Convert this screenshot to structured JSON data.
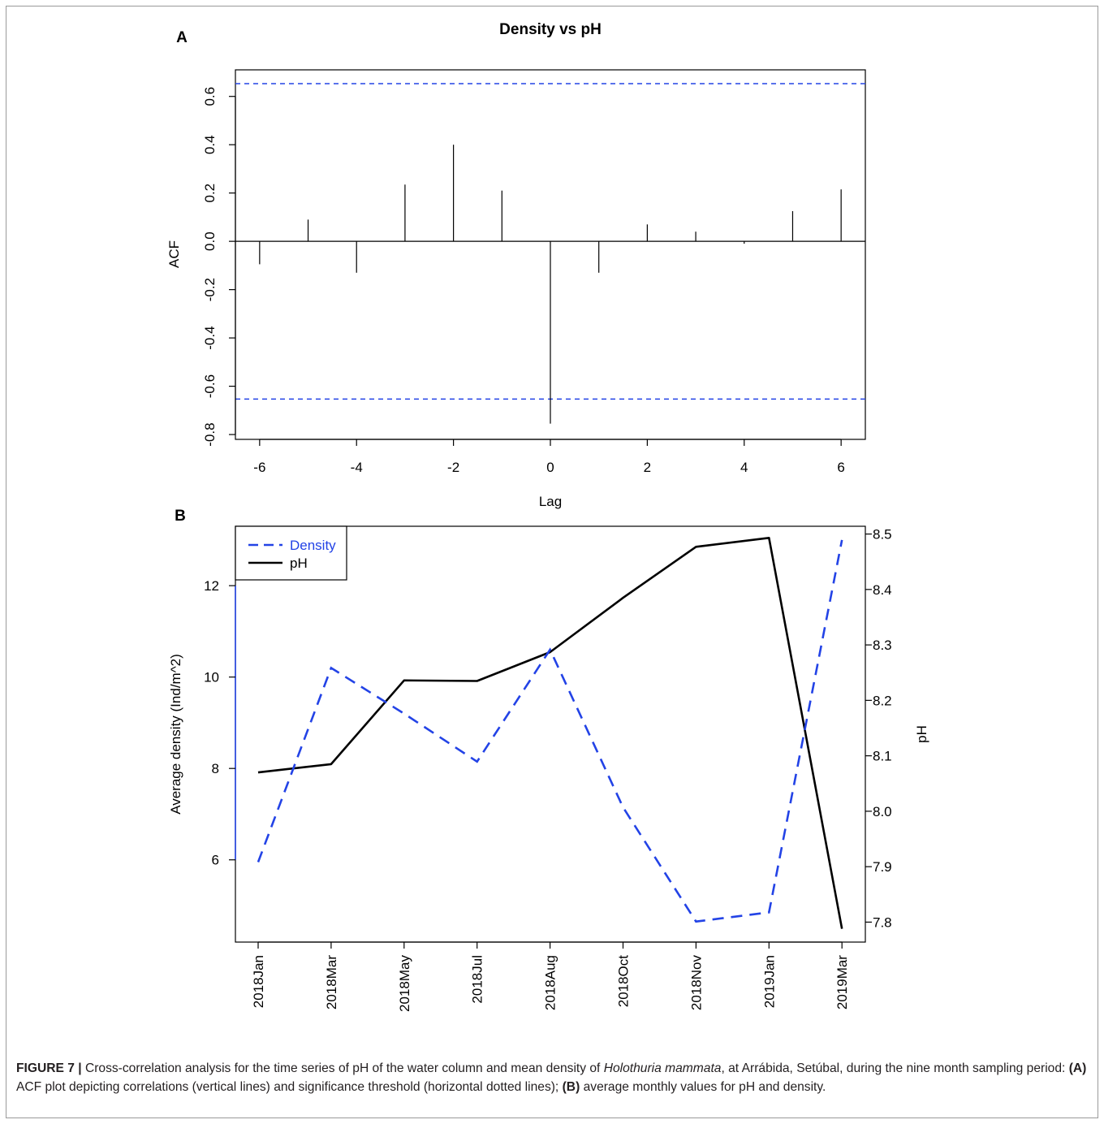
{
  "chart_data": [
    {
      "panel": "A",
      "type": "bar",
      "title": "Density vs pH",
      "xlabel": "Lag",
      "ylabel": "ACF",
      "xlim": [
        -6.5,
        6.5
      ],
      "ylim": [
        -0.82,
        0.71
      ],
      "xticks": [
        -6,
        -4,
        -2,
        0,
        2,
        4,
        6
      ],
      "yticks": [
        -0.8,
        -0.6,
        -0.4,
        -0.2,
        0.0,
        0.2,
        0.4,
        0.6
      ],
      "ytick_labels": [
        "-0.8",
        "-0.6",
        "-0.4",
        "-0.2",
        "0.0",
        "0.2",
        "0.4",
        "0.6"
      ],
      "lags": [
        -6,
        -5,
        -4,
        -3,
        -2,
        -1,
        0,
        1,
        2,
        3,
        4,
        5,
        6
      ],
      "values": [
        -0.095,
        0.09,
        -0.13,
        0.235,
        0.4,
        0.21,
        -0.755,
        -0.13,
        0.07,
        0.04,
        -0.01,
        0.125,
        0.215
      ],
      "significance": [
        0.653,
        -0.653
      ],
      "significance_color": "#2343e6",
      "grid": false
    },
    {
      "panel": "B",
      "type": "line",
      "categories": [
        "2018Jan",
        "2018Mar",
        "2018May",
        "2018Jul",
        "2018Aug",
        "2018Oct",
        "2018Nov",
        "2019Jan",
        "2019Mar"
      ],
      "ylabel": "Average density (Ind/m^2)",
      "ylabel_right": "pH",
      "ylim": [
        4.2,
        13.3
      ],
      "yticks": [
        6,
        8,
        10,
        12
      ],
      "ylim_right": [
        7.764,
        8.514
      ],
      "yticks_right": [
        "7.8",
        "7.9",
        "8.0",
        "8.1",
        "8.2",
        "8.3",
        "8.4",
        "8.5"
      ],
      "legend_position": "top-left",
      "grid": false,
      "series": [
        {
          "name": "Density",
          "axis": "left",
          "style": "dashed",
          "color": "#2343e6",
          "values": [
            5.95,
            10.2,
            9.2,
            8.15,
            10.6,
            7.15,
            4.65,
            4.85,
            13.0
          ]
        },
        {
          "name": "pH",
          "axis": "right",
          "style": "solid",
          "color": "#000000",
          "values": [
            8.07,
            8.085,
            8.236,
            8.235,
            8.287,
            8.385,
            8.477,
            8.493,
            7.788
          ]
        }
      ]
    }
  ],
  "caption": {
    "label": "FIGURE 7 |",
    "t1": " Cross-correlation analysis for the time series of pH of the water column and mean density of ",
    "species": "Holothuria mammata",
    "t2": ", at Arrábida, Setúbal, during the nine month sampling period: ",
    "a_label": "(A)",
    "t3": " ACF plot depicting correlations (vertical lines) and significance threshold (horizontal dotted lines); ",
    "b_label": "(B)",
    "t4": " average monthly values for pH and density."
  }
}
